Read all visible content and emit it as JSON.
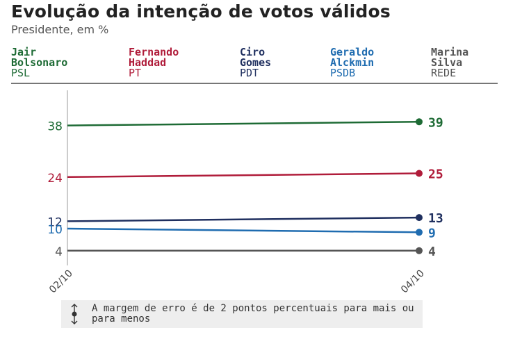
{
  "title": "Evolução da intenção de votos válidos",
  "subtitle": "Presidente, em %",
  "colors": {
    "bolsonaro": "#1e6b35",
    "haddad": "#b01c3a",
    "ciro": "#1f2f5f",
    "alckmin": "#1f6cb0",
    "marina": "#555555"
  },
  "legend": [
    {
      "name": "Jair\nBolsonaro",
      "party": "PSL"
    },
    {
      "name": "Fernando\nHaddad",
      "party": "PT"
    },
    {
      "name": "Ciro\nGomes",
      "party": "PDT"
    },
    {
      "name": "Geraldo\nAlckmin",
      "party": "PSDB"
    },
    {
      "name": "Marina\nSilva",
      "party": "REDE"
    }
  ],
  "note": {
    "icon": "error-margin-icon",
    "text": "A margem de erro é de 2 pontos percentuais para mais ou para menos"
  },
  "chart_data": {
    "type": "line",
    "title": "Evolução da intenção de votos válidos",
    "subtitle": "Presidente, em %",
    "x": [
      "02/10",
      "04/10"
    ],
    "ylim": [
      0,
      47
    ],
    "grid": false,
    "legend_position": "top",
    "series": [
      {
        "name": "Jair Bolsonaro",
        "party": "PSL",
        "values": [
          38,
          39
        ]
      },
      {
        "name": "Fernando Haddad",
        "party": "PT",
        "values": [
          24,
          25
        ]
      },
      {
        "name": "Ciro Gomes",
        "party": "PDT",
        "values": [
          12,
          13
        ]
      },
      {
        "name": "Geraldo Alckmin",
        "party": "PSDB",
        "values": [
          10,
          9
        ]
      },
      {
        "name": "Marina Silva",
        "party": "REDE",
        "values": [
          4,
          4
        ]
      }
    ]
  }
}
